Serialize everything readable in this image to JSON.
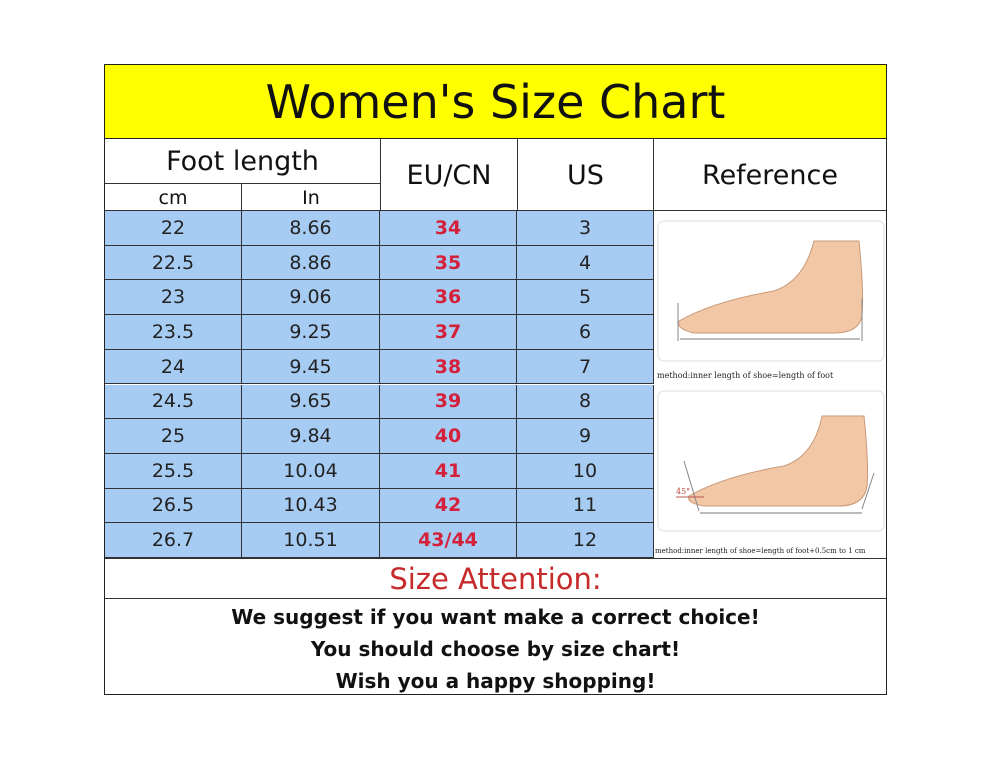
{
  "title": "Women's Size Chart",
  "headers": {
    "foot_length": "Foot length",
    "cm": "cm",
    "in": "In",
    "eu_cn": "EU/CN",
    "us": "US",
    "reference": "Reference"
  },
  "rows": [
    {
      "cm": "22",
      "in": "8.66",
      "eu": "34",
      "us": "3"
    },
    {
      "cm": "22.5",
      "in": "8.86",
      "eu": "35",
      "us": "4"
    },
    {
      "cm": "23",
      "in": "9.06",
      "eu": "36",
      "us": "5"
    },
    {
      "cm": "23.5",
      "in": "9.25",
      "eu": "37",
      "us": "6"
    },
    {
      "cm": "24",
      "in": "9.45",
      "eu": "38",
      "us": "7"
    },
    {
      "cm": "24.5",
      "in": "9.65",
      "eu": "39",
      "us": "8"
    },
    {
      "cm": "25",
      "in": "9.84",
      "eu": "40",
      "us": "9"
    },
    {
      "cm": "25.5",
      "in": "10.04",
      "eu": "41",
      "us": "10"
    },
    {
      "cm": "26.5",
      "in": "10.43",
      "eu": "42",
      "us": "11"
    },
    {
      "cm": "26.7",
      "in": "10.51",
      "eu": "43/44",
      "us": "12"
    }
  ],
  "reference": {
    "caption1": "method:inner length of shoe=length of foot",
    "caption2": "method:inner length of shoe=length of foot+0.5cm to 1 cm",
    "angle_label": "45°"
  },
  "attention": "Size Attention:",
  "notes": [
    "We suggest if you want make a correct choice!",
    "You should choose by size chart!",
    "Wish you a happy shopping!"
  ],
  "colors": {
    "title_bg": "#ffff00",
    "row_bg": "#a7ccf3",
    "eu_text": "#d4203a",
    "attention_text": "#c62a2a"
  }
}
